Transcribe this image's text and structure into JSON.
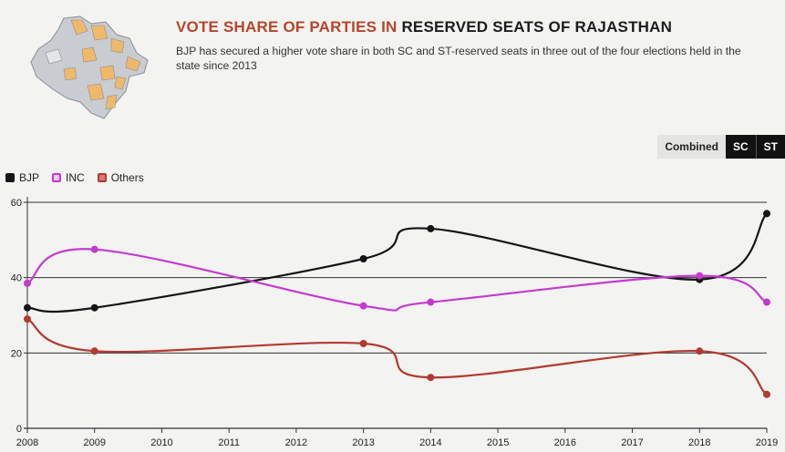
{
  "header": {
    "title_part1": "VOTE SHARE OF PARTIES IN",
    "title_part2": "RESERVED SEATS OF RAJASTHAN",
    "subtitle": "BJP has secured a higher vote share in both SC and ST-reserved seats in three out of the four elections held in the state since 2013",
    "map_icon": "rajasthan-map-icon"
  },
  "toggle": {
    "options": [
      "Combined",
      "SC",
      "ST"
    ],
    "selected": "Combined"
  },
  "colors": {
    "BJP": "#141414",
    "INC": "#c33ad0",
    "Others": "#b23a30",
    "title_accent": "#b5462b"
  },
  "chart_data": {
    "type": "line",
    "x_ticks": [
      "2008",
      "2009",
      "2010",
      "2011",
      "2012",
      "2013",
      "2014",
      "2015",
      "2016",
      "2017",
      "2018",
      "2019"
    ],
    "y_ticks": [
      "0",
      "20",
      "40",
      "60"
    ],
    "xlim": [
      2008,
      2019
    ],
    "ylim": [
      0,
      60
    ],
    "grid": true,
    "legend": "top-left",
    "series": [
      {
        "name": "BJP",
        "x": [
          2008,
          2009,
          2013,
          2014,
          2018,
          2019
        ],
        "values": [
          32,
          32,
          45,
          53,
          39.5,
          57
        ]
      },
      {
        "name": "INC",
        "x": [
          2008,
          2009,
          2013,
          2014,
          2018,
          2019
        ],
        "values": [
          38.5,
          47.5,
          32.5,
          33.5,
          40.5,
          33.5
        ]
      },
      {
        "name": "Others",
        "x": [
          2008,
          2009,
          2013,
          2014,
          2018,
          2019
        ],
        "values": [
          29,
          20.5,
          22.5,
          13.5,
          20.5,
          9
        ]
      }
    ]
  }
}
